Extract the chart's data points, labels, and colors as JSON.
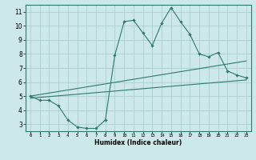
{
  "xlabel": "Humidex (Indice chaleur)",
  "bg_color": "#cce8e8",
  "line_color": "#2d7b6e",
  "grid_color": "#aacece",
  "spine_color": "#2d7b6e",
  "xlim": [
    -0.5,
    23.5
  ],
  "ylim": [
    2.5,
    11.5
  ],
  "xticks": [
    0,
    1,
    2,
    3,
    4,
    5,
    6,
    7,
    8,
    9,
    10,
    11,
    12,
    13,
    14,
    15,
    16,
    17,
    18,
    19,
    20,
    21,
    22,
    23
  ],
  "yticks": [
    3,
    4,
    5,
    6,
    7,
    8,
    9,
    10,
    11
  ],
  "main_x": [
    0,
    1,
    2,
    3,
    4,
    5,
    6,
    7,
    8,
    9,
    10,
    11,
    12,
    13,
    14,
    15,
    16,
    17,
    18,
    19,
    20,
    21,
    22,
    23
  ],
  "main_y": [
    5.0,
    4.7,
    4.7,
    4.3,
    3.3,
    2.8,
    2.7,
    2.7,
    3.3,
    7.9,
    10.3,
    10.4,
    9.5,
    8.6,
    10.2,
    11.3,
    10.3,
    9.4,
    8.0,
    7.8,
    8.1,
    6.8,
    6.5,
    6.3
  ],
  "trend1_x": [
    0,
    23
  ],
  "trend1_y": [
    5.0,
    7.5
  ],
  "trend2_x": [
    0,
    23
  ],
  "trend2_y": [
    4.85,
    6.15
  ]
}
